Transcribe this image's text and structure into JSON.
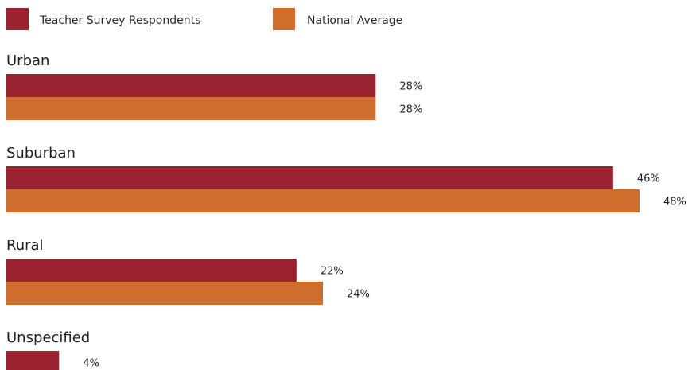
{
  "chart_data": {
    "type": "bar",
    "orientation": "horizontal",
    "categories": [
      "Urban",
      "Suburban",
      "Rural",
      "Unspecified"
    ],
    "series": [
      {
        "name": "Teacher Survey Respondents",
        "values": [
          28,
          46,
          22,
          4
        ],
        "labels": [
          "28%",
          "46%",
          "22%",
          "4%"
        ],
        "color": "#9b2330"
      },
      {
        "name": "National Average",
        "values": [
          28,
          48,
          24,
          null
        ],
        "labels": [
          "28%",
          "48%",
          "24%",
          ""
        ],
        "color": "#cf6e2c"
      }
    ],
    "value_suffix": "%",
    "xlim": [
      0,
      48
    ],
    "grid": false,
    "legend_position": "top-left"
  }
}
